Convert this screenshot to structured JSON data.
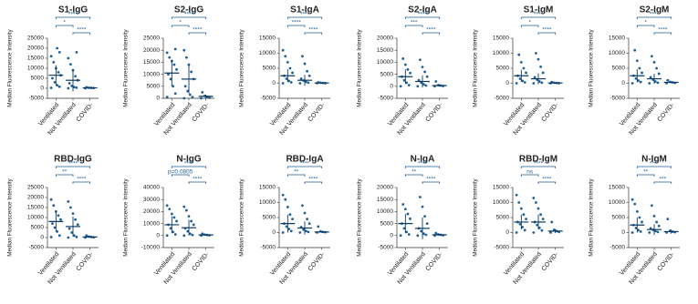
{
  "chart_data": [
    {
      "type": "strip",
      "title": "S1-IgG",
      "y_label": "Median Fluorescence Intensity",
      "categories": [
        "Ventilated",
        "Not Ventilated",
        "COVID-"
      ],
      "color": "#1f5f97",
      "points": [
        [
          200,
          800,
          1500,
          3000,
          5000,
          6500,
          8000,
          10000,
          13000,
          16000,
          18000,
          20000
        ],
        [
          0,
          300,
          600,
          1200,
          2500,
          4000,
          6000,
          9000,
          12000,
          15000,
          18000
        ],
        [
          0,
          100,
          200,
          300,
          500
        ]
      ],
      "mean": [
        6500,
        4000,
        200
      ],
      "sd": [
        5000,
        5500,
        150
      ],
      "ylim": [
        -5000,
        25000
      ],
      "yticks": [
        -5000,
        0,
        5000,
        10000,
        15000,
        20000,
        25000
      ],
      "comparisons": [
        {
          "groups": [
            0,
            2
          ],
          "label": "****"
        },
        {
          "groups": [
            0,
            1
          ],
          "label": "*"
        },
        {
          "groups": [
            1,
            2
          ],
          "label": "****"
        }
      ]
    },
    {
      "type": "strip",
      "title": "S2-IgG",
      "y_label": "Median Fluorescence Intensity",
      "categories": [
        "Ventilated",
        "Not Ventilated",
        "COVID-"
      ],
      "color": "#1f5f97",
      "points": [
        [
          500,
          2000,
          5000,
          8000,
          10000,
          12000,
          14000,
          15500,
          17000,
          19000,
          20500
        ],
        [
          0,
          500,
          1500,
          3000,
          5000,
          8000,
          11000,
          14000,
          17000,
          20000
        ],
        [
          0,
          300,
          600,
          1000,
          2500
        ]
      ],
      "mean": [
        10500,
        8000,
        800
      ],
      "sd": [
        5500,
        6000,
        700
      ],
      "ylim": [
        0,
        25000
      ],
      "yticks": [
        0,
        5000,
        10000,
        15000,
        20000,
        25000
      ],
      "comparisons": [
        {
          "groups": [
            0,
            2
          ],
          "label": "****"
        },
        {
          "groups": [
            0,
            1
          ],
          "label": "*"
        },
        {
          "groups": [
            1,
            2
          ],
          "label": "****"
        }
      ]
    },
    {
      "type": "strip",
      "title": "S1-IgA",
      "y_label": "Median Fluorescence Intensity",
      "categories": [
        "Ventilated",
        "Not Ventilated",
        "COVID-"
      ],
      "color": "#1f5f97",
      "points": [
        [
          0,
          300,
          800,
          1500,
          2500,
          3500,
          5000,
          7000,
          9000,
          11000
        ],
        [
          0,
          200,
          500,
          900,
          1500,
          2500,
          4000,
          6500,
          9000
        ],
        [
          0,
          50,
          100,
          200,
          300
        ]
      ],
      "mean": [
        2500,
        1000,
        100
      ],
      "sd": [
        2200,
        1800,
        80
      ],
      "ylim": [
        -5000,
        15000
      ],
      "yticks": [
        -5000,
        0,
        5000,
        10000,
        15000
      ],
      "comparisons": [
        {
          "groups": [
            0,
            2
          ],
          "label": "****"
        },
        {
          "groups": [
            0,
            1
          ],
          "label": "****"
        },
        {
          "groups": [
            1,
            2
          ],
          "label": "****"
        }
      ]
    },
    {
      "type": "strip",
      "title": "S2-IgA",
      "y_label": "Median Fluorescence Intensity",
      "categories": [
        "Ventilated",
        "Not Ventilated",
        "COVID-"
      ],
      "color": "#1f5f97",
      "points": [
        [
          0,
          500,
          1500,
          2500,
          4000,
          5500,
          7000,
          9000,
          11500
        ],
        [
          0,
          300,
          800,
          1500,
          2500,
          4000,
          6000,
          8000,
          11000
        ],
        [
          0,
          100,
          300,
          500,
          2000
        ]
      ],
      "mean": [
        4000,
        2000,
        300
      ],
      "sd": [
        3000,
        2500,
        400
      ],
      "ylim": [
        -5000,
        20000
      ],
      "yticks": [
        -5000,
        0,
        5000,
        10000,
        15000,
        20000
      ],
      "comparisons": [
        {
          "groups": [
            0,
            2
          ],
          "label": "****"
        },
        {
          "groups": [
            0,
            1
          ],
          "label": "***"
        },
        {
          "groups": [
            1,
            2
          ],
          "label": "****"
        }
      ]
    },
    {
      "type": "strip",
      "title": "S1-IgM",
      "y_label": "Median Fluorescence Intensity",
      "categories": [
        "Ventilated",
        "Not Ventilated",
        "COVID-"
      ],
      "color": "#1f5f97",
      "points": [
        [
          0,
          300,
          800,
          1500,
          2500,
          3500,
          5000,
          7000,
          9500
        ],
        [
          0,
          200,
          600,
          1200,
          2000,
          3500,
          5500,
          8000,
          10000
        ],
        [
          0,
          50,
          100,
          200,
          400
        ]
      ],
      "mean": [
        2500,
        1500,
        100
      ],
      "sd": [
        2000,
        1800,
        100
      ],
      "ylim": [
        -5000,
        15000
      ],
      "yticks": [
        -5000,
        0,
        5000,
        10000,
        15000
      ],
      "comparisons": [
        {
          "groups": [
            0,
            2
          ],
          "label": "****"
        },
        {
          "groups": [
            0,
            1
          ],
          "label": "*"
        },
        {
          "groups": [
            1,
            2
          ],
          "label": "****"
        }
      ]
    },
    {
      "type": "strip",
      "title": "S2-IgM",
      "y_label": "Median Fluorescence Intensity",
      "categories": [
        "Ventilated",
        "Not Ventilated",
        "COVID-"
      ],
      "color": "#1f5f97",
      "points": [
        [
          0,
          400,
          900,
          1600,
          2500,
          3500,
          5000,
          7500,
          11000
        ],
        [
          0,
          200,
          600,
          1200,
          2000,
          3200,
          5000,
          7000,
          9000
        ],
        [
          0,
          100,
          300,
          500,
          1000
        ]
      ],
      "mean": [
        2500,
        1500,
        300
      ],
      "sd": [
        2200,
        1700,
        250
      ],
      "ylim": [
        -5000,
        15000
      ],
      "yticks": [
        -5000,
        0,
        5000,
        10000,
        15000
      ],
      "comparisons": [
        {
          "groups": [
            0,
            2
          ],
          "label": "****"
        },
        {
          "groups": [
            0,
            1
          ],
          "label": "*"
        },
        {
          "groups": [
            1,
            2
          ],
          "label": "****"
        }
      ]
    },
    {
      "type": "strip",
      "title": "RBD-IgG",
      "y_label": "Median Fluorescence Intensity",
      "categories": [
        "Ventilated",
        "Not Ventilated",
        "COVID-"
      ],
      "color": "#1f5f97",
      "points": [
        [
          200,
          1000,
          3000,
          5000,
          7000,
          9000,
          11000,
          13000,
          16000,
          19000
        ],
        [
          0,
          300,
          1000,
          2500,
          4500,
          6500,
          9000,
          12000,
          15000,
          18000
        ],
        [
          0,
          100,
          300,
          500,
          1000
        ]
      ],
      "mean": [
        8000,
        5500,
        300
      ],
      "sd": [
        5000,
        5000,
        250
      ],
      "ylim": [
        -5000,
        25000
      ],
      "yticks": [
        -5000,
        0,
        5000,
        10000,
        15000,
        20000,
        25000
      ],
      "comparisons": [
        {
          "groups": [
            0,
            2
          ],
          "label": "****"
        },
        {
          "groups": [
            0,
            1
          ],
          "label": "**"
        },
        {
          "groups": [
            1,
            2
          ],
          "label": "****"
        }
      ]
    },
    {
      "type": "strip",
      "title": "N-IgG",
      "y_label": "Median Fluorescence Intensity",
      "categories": [
        "Ventilated",
        "Not Ventilated",
        "COVID-"
      ],
      "color": "#1f5f97",
      "points": [
        [
          0,
          1000,
          3000,
          6000,
          9000,
          12000,
          15000,
          18000,
          22000,
          25000
        ],
        [
          0,
          500,
          1500,
          3500,
          6000,
          9000,
          12000,
          16000,
          21000,
          24000
        ],
        [
          0,
          200,
          500,
          800,
          1500
        ]
      ],
      "mean": [
        9000,
        6500,
        500
      ],
      "sd": [
        7000,
        6500,
        400
      ],
      "ylim": [
        -10000,
        40000
      ],
      "yticks": [
        -10000,
        0,
        10000,
        20000,
        30000,
        40000
      ],
      "comparisons": [
        {
          "groups": [
            0,
            2
          ],
          "label": "****"
        },
        {
          "groups": [
            0,
            1
          ],
          "label": "p=0.0805"
        },
        {
          "groups": [
            1,
            2
          ],
          "label": "****"
        }
      ]
    },
    {
      "type": "strip",
      "title": "RBD-IgA",
      "y_label": "Median Fluorescence Intensity",
      "categories": [
        "Ventilated",
        "Not Ventilated",
        "COVID-"
      ],
      "color": "#1f5f97",
      "points": [
        [
          0,
          500,
          1200,
          2000,
          3000,
          4500,
          6000,
          8500,
          11000,
          12500
        ],
        [
          0,
          200,
          500,
          1000,
          1800,
          3000,
          4500,
          6500,
          9000
        ],
        [
          0,
          100,
          200,
          400,
          2000
        ]
      ],
      "mean": [
        3000,
        1500,
        200
      ],
      "sd": [
        3000,
        2200,
        300
      ],
      "ylim": [
        -5000,
        15000
      ],
      "yticks": [
        -5000,
        0,
        5000,
        10000,
        15000
      ],
      "comparisons": [
        {
          "groups": [
            0,
            2
          ],
          "label": "****"
        },
        {
          "groups": [
            0,
            1
          ],
          "label": "**"
        },
        {
          "groups": [
            1,
            2
          ],
          "label": "****"
        }
      ]
    },
    {
      "type": "strip",
      "title": "N-IgA",
      "y_label": "Median Fluorescence Intensity",
      "categories": [
        "Ventilated",
        "Not Ventilated",
        "COVID-"
      ],
      "color": "#1f5f97",
      "points": [
        [
          0,
          500,
          1500,
          3000,
          5000,
          7000,
          9000,
          11000,
          13000
        ],
        [
          0,
          300,
          800,
          1800,
          3000,
          5000,
          8000,
          12000,
          16000
        ],
        [
          0,
          100,
          300,
          500,
          1000
        ]
      ],
      "mean": [
        5000,
        3000,
        300
      ],
      "sd": [
        4000,
        4500,
        300
      ],
      "ylim": [
        -5000,
        20000
      ],
      "yticks": [
        -5000,
        0,
        5000,
        10000,
        15000,
        20000
      ],
      "comparisons": [
        {
          "groups": [
            0,
            2
          ],
          "label": "****"
        },
        {
          "groups": [
            0,
            1
          ],
          "label": "**"
        },
        {
          "groups": [
            1,
            2
          ],
          "label": "****"
        }
      ]
    },
    {
      "type": "strip",
      "title": "RBD-IgM",
      "y_label": "Median Fluorescence Intensity",
      "categories": [
        "Ventilated",
        "Not Ventilated",
        "COVID-"
      ],
      "color": "#1f5f97",
      "points": [
        [
          0,
          800,
          1800,
          2800,
          3500,
          4500,
          6000,
          8000,
          10000,
          12500
        ],
        [
          0,
          700,
          1600,
          2500,
          3500,
          4500,
          6000,
          8000,
          10000,
          11500
        ],
        [
          0,
          200,
          500,
          900,
          3500
        ]
      ],
      "mean": [
        3500,
        3500,
        500
      ],
      "sd": [
        2500,
        2500,
        700
      ],
      "ylim": [
        -5000,
        15000
      ],
      "yticks": [
        -5000,
        0,
        5000,
        10000,
        15000
      ],
      "comparisons": [
        {
          "groups": [
            0,
            2
          ],
          "label": "****"
        },
        {
          "groups": [
            0,
            1
          ],
          "label": "ns"
        },
        {
          "groups": [
            1,
            2
          ],
          "label": "****"
        }
      ]
    },
    {
      "type": "strip",
      "title": "N-IgM",
      "y_label": "Median Fluorescence Intensity",
      "categories": [
        "Ventilated",
        "Not Ventilated",
        "COVID-"
      ],
      "color": "#1f5f97",
      "points": [
        [
          0,
          300,
          800,
          1500,
          2500,
          3500,
          5000,
          7000,
          9500,
          11000
        ],
        [
          0,
          200,
          500,
          900,
          1400,
          2200,
          3500,
          5500,
          9000
        ],
        [
          0,
          100,
          300,
          600,
          4500
        ]
      ],
      "mean": [
        2500,
        1000,
        300
      ],
      "sd": [
        2500,
        1800,
        700
      ],
      "ylim": [
        -5000,
        15000
      ],
      "yticks": [
        -5000,
        0,
        5000,
        10000,
        15000
      ],
      "comparisons": [
        {
          "groups": [
            0,
            2
          ],
          "label": "****"
        },
        {
          "groups": [
            0,
            1
          ],
          "label": "**"
        },
        {
          "groups": [
            1,
            2
          ],
          "label": "***"
        }
      ]
    }
  ]
}
